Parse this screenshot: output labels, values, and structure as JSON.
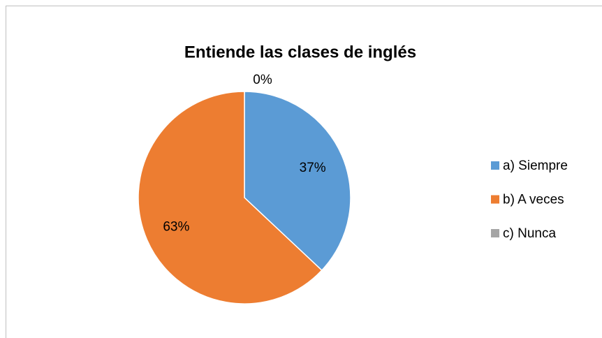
{
  "chart_data": {
    "type": "pie",
    "title": "Entiende las clases de inglés",
    "categories": [
      "a) Siempre",
      "b) A veces",
      "c) Nunca"
    ],
    "values": [
      37,
      63,
      0
    ],
    "value_labels": [
      "37%",
      "63%",
      "0%"
    ],
    "colors": [
      "#5b9bd5",
      "#ed7d31",
      "#a5a5a5"
    ],
    "legend": "right"
  }
}
